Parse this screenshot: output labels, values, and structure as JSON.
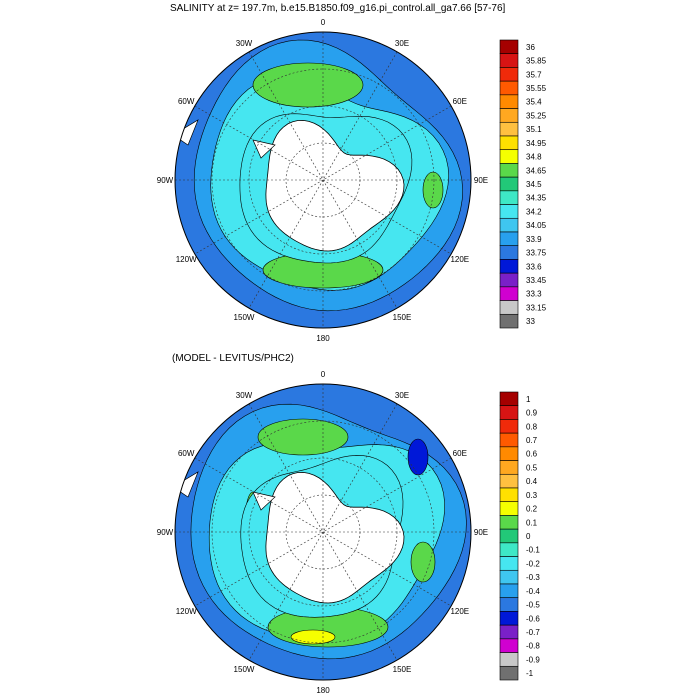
{
  "top_map": {
    "title": "SALINITY at z= 197.7m, b.e15.B1850.f09_g16.pi_control.all_ga7.66 [57-76]",
    "lon_labels": [
      "0",
      "30E",
      "60E",
      "90E",
      "120E",
      "150E",
      "180",
      "150W",
      "120W",
      "90W",
      "60W",
      "30W"
    ],
    "colorbar": {
      "labels": [
        "36",
        "35.85",
        "35.7",
        "35.55",
        "35.4",
        "35.25",
        "35.1",
        "34.95",
        "34.8",
        "34.65",
        "34.5",
        "34.35",
        "34.2",
        "34.05",
        "33.9",
        "33.75",
        "33.6",
        "33.45",
        "33.3",
        "33.15",
        "33"
      ],
      "colors": [
        "#a50000",
        "#d71414",
        "#f02a0a",
        "#ff5a00",
        "#ff8a00",
        "#ffa820",
        "#ffc040",
        "#ffe000",
        "#f5ff00",
        "#5ad84a",
        "#22c878",
        "#3ee8c6",
        "#46e6f0",
        "#3fc6f0",
        "#28a0ee",
        "#2b78e0",
        "#0018d8",
        "#7a20c8",
        "#d000d0",
        "#c8c8c8",
        "#707070"
      ]
    }
  },
  "bottom_map": {
    "title": "(MODEL - LEVITUS/PHC2)",
    "lon_labels": [
      "0",
      "30E",
      "60E",
      "90E",
      "120E",
      "150E",
      "180",
      "150W",
      "120W",
      "90W",
      "60W",
      "30W"
    ],
    "colorbar": {
      "labels": [
        "1",
        "0.9",
        "0.8",
        "0.7",
        "0.6",
        "0.5",
        "0.4",
        "0.3",
        "0.2",
        "0.1",
        "0",
        "-0.1",
        "-0.2",
        "-0.3",
        "-0.4",
        "-0.5",
        "-0.6",
        "-0.7",
        "-0.8",
        "-0.9",
        "-1"
      ],
      "colors": [
        "#a50000",
        "#d71414",
        "#f02a0a",
        "#ff5a00",
        "#ff8a00",
        "#ffa820",
        "#ffc040",
        "#ffe000",
        "#f5ff00",
        "#5ad84a",
        "#22c878",
        "#3ee8c6",
        "#46e6f0",
        "#3fc6f0",
        "#28a0ee",
        "#2b78e0",
        "#0018d8",
        "#7a20c8",
        "#d000d0",
        "#c8c8c8",
        "#707070"
      ]
    }
  },
  "colors": {
    "ocean_outer": "#2b78e0",
    "ocean_mid": "#28a0ee",
    "ocean_light": "#46e6f0",
    "green_band": "#5ad84a",
    "land": "#ffffff",
    "contour": "#000000"
  }
}
